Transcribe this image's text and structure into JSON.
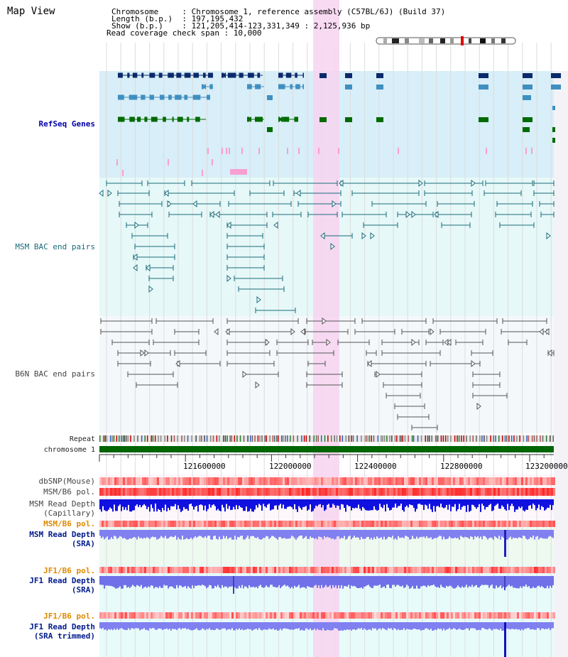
{
  "title": "Map View",
  "header": {
    "lines": [
      "Chromosome     : Chromosome 1, reference assembly (C57BL/6J) (Build 37)",
      "Length (b.p.)  : 197,195,432",
      "Show (b.p.)    : 121,205,414-123,331,349 : 2,125,936 bp",
      "Read coverage check span : 10,000"
    ]
  },
  "tracks": {
    "refseq": "RefSeq Genes",
    "msm_bac": "MSM BAC end pairs",
    "b6n_bac": "B6N BAC end pairs",
    "repeat": "Repeat",
    "chromosome": "chromosome 1",
    "dbsnp": "dbSNP(Mouse)",
    "msm_b6_pol": "MSM/B6 pol.",
    "msm_depth_cap_1": "MSM Read Depth",
    "msm_depth_cap_2": "(Capillary)",
    "msm_b6_pol2": "MSM/B6 pol.",
    "msm_depth_sra_1": "MSM Read Depth",
    "msm_depth_sra_2": "(SRA)",
    "jf1_b6_pol": "JF1/B6 pol.",
    "jf1_depth_sra_1": "JF1 Read Depth",
    "jf1_depth_sra_2": "(SRA)",
    "jf1_b6_pol2": "JF1/B6 pol.",
    "jf1_depth_trim_1": "JF1 Read Depth",
    "jf1_depth_trim_2": "(SRA trimmed)"
  },
  "axis": {
    "ticks": [
      "121600000",
      "122000000",
      "122400000",
      "122800000",
      "123200000"
    ]
  },
  "colors": {
    "refseq_bg": "#d8eef8",
    "msm_bg": "#e6f8f8",
    "b6n_bg": "#f4f8fb",
    "highlight": "#f7d3f0",
    "chromosome": "#006400",
    "gene_dark": "#0b2a6b",
    "gene_mid": "#3f8fc0",
    "gene_green": "#006a00",
    "bac_teal": "#1a6b7a",
    "bac_gray": "#555555"
  }
}
